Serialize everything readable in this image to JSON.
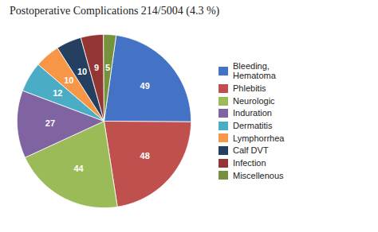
{
  "chart_data": {
    "type": "pie",
    "title": "Postoperative Complications   214/5004  (4.3 %)",
    "categories": [
      "Bleeding,\nHematoma",
      "Phlebitis",
      "Neurologic",
      "Induration",
      "Dermatitis",
      "Lymphorrhea",
      "Calf DVT",
      "Infection",
      "Miscellenous"
    ],
    "values": [
      49,
      48,
      44,
      27,
      12,
      10,
      10,
      9,
      5
    ],
    "colors": [
      "#4472c4",
      "#c0504d",
      "#9bbb59",
      "#8064a2",
      "#4bacc6",
      "#f79646",
      "#243f60",
      "#943634",
      "#76923c"
    ],
    "data_labels": true,
    "legend": "right"
  }
}
